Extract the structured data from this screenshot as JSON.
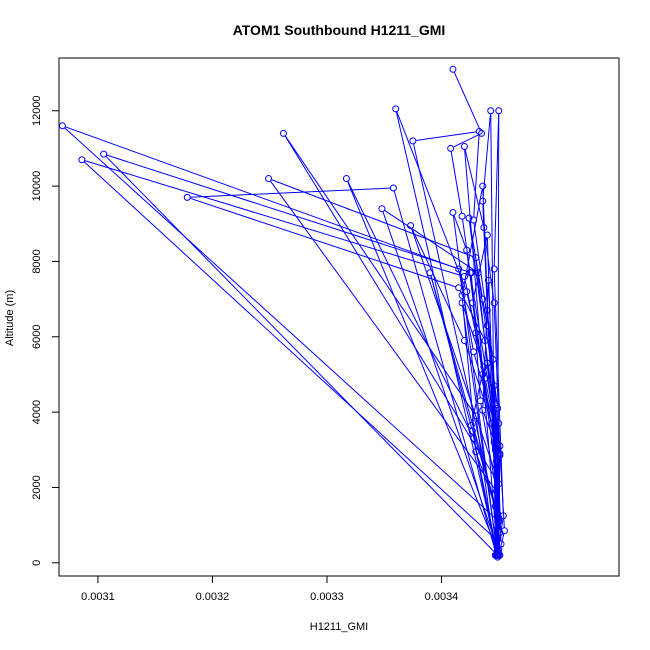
{
  "chart_data": {
    "type": "line",
    "title": "ATOM1 Southbound H1211_GMI",
    "xlabel": "H1211_GMI",
    "ylabel": "Altitude (m)",
    "xlim": [
      0.003066,
      0.003555
    ],
    "ylim": [
      -350,
      13400
    ],
    "x_ticks": [
      0.0031,
      0.0032,
      0.0033,
      0.0034
    ],
    "x_tick_labels": [
      "0.0031",
      "0.0032",
      "0.0033",
      "0.0034"
    ],
    "y_ticks": [
      0,
      2000,
      4000,
      6000,
      8000,
      10000,
      12000
    ],
    "y_tick_labels": [
      "0",
      "2000",
      "4000",
      "6000",
      "8000",
      "10000",
      "12000"
    ],
    "grid": false,
    "series": [
      {
        "color": "#0000ff",
        "marker": "open-circle",
        "points": [
          [
            0.00341,
            13100
          ],
          [
            0.003435,
            11400
          ],
          [
            0.003408,
            11000
          ],
          [
            0.003418,
            9200
          ],
          [
            0.003425,
            7700
          ],
          [
            0.003448,
            3400
          ],
          [
            0.00345,
            350
          ],
          [
            0.003449,
            200
          ],
          [
            0.00336,
            12050
          ],
          [
            0.003422,
            7200
          ],
          [
            0.00343,
            6100
          ],
          [
            0.003446,
            3200
          ],
          [
            0.00345,
            1100
          ],
          [
            0.003069,
            11600
          ],
          [
            0.003415,
            7800
          ],
          [
            0.003428,
            5600
          ],
          [
            0.003447,
            3600
          ],
          [
            0.003451,
            800
          ],
          [
            0.003375,
            11200
          ],
          [
            0.003433,
            11450
          ],
          [
            0.003428,
            9100
          ],
          [
            0.003445,
            5400
          ],
          [
            0.00345,
            2100
          ],
          [
            0.003262,
            11400
          ],
          [
            0.00343,
            3900
          ],
          [
            0.003447,
            200
          ],
          [
            0.003443,
            12000
          ],
          [
            0.003436,
            9600
          ],
          [
            0.00344,
            6700
          ],
          [
            0.003448,
            4200
          ],
          [
            0.003452,
            500
          ],
          [
            0.003086,
            10700
          ],
          [
            0.00342,
            7600
          ],
          [
            0.003438,
            4900
          ],
          [
            0.003451,
            2900
          ],
          [
            0.003449,
            200
          ],
          [
            0.003105,
            10850
          ],
          [
            0.003426,
            7700
          ],
          [
            0.003434,
            4300
          ],
          [
            0.003448,
            1900
          ],
          [
            0.003249,
            10200
          ],
          [
            0.00343,
            8100
          ],
          [
            0.00344,
            5300
          ],
          [
            0.003451,
            3100
          ],
          [
            0.00345,
            250
          ],
          [
            0.003317,
            10200
          ],
          [
            0.003428,
            3300
          ],
          [
            0.003448,
            200
          ],
          [
            0.003358,
            9950
          ],
          [
            0.003178,
            9700
          ],
          [
            0.003415,
            7300
          ],
          [
            0.003438,
            5900
          ],
          [
            0.003448,
            2700
          ],
          [
            0.003451,
            200
          ],
          [
            0.003348,
            9400
          ],
          [
            0.003432,
            7700
          ],
          [
            0.003446,
            4700
          ],
          [
            0.003449,
            150
          ],
          [
            0.00341,
            9300
          ],
          [
            0.003422,
            8300
          ],
          [
            0.003436,
            5000
          ],
          [
            0.003448,
            2300
          ],
          [
            0.003373,
            8950
          ],
          [
            0.00342,
            5900
          ],
          [
            0.003444,
            3700
          ],
          [
            0.00345,
            1200
          ],
          [
            0.00339,
            7700
          ],
          [
            0.003427,
            3500
          ],
          [
            0.003449,
            200
          ],
          [
            0.00342,
            11050
          ],
          [
            0.003437,
            8900
          ],
          [
            0.003446,
            6900
          ],
          [
            0.00345,
            3700
          ],
          [
            0.003449,
            300
          ],
          [
            0.003436,
            10000
          ],
          [
            0.003418,
            7100
          ],
          [
            0.00343,
            2950
          ],
          [
            0.003447,
            1500
          ],
          [
            0.003449,
            200
          ],
          [
            0.00345,
            12000
          ],
          [
            0.003446,
            7800
          ],
          [
            0.003454,
            1250
          ],
          [
            0.003449,
            200
          ],
          [
            0.00344,
            8700
          ],
          [
            0.003427,
            6900
          ],
          [
            0.003447,
            3000
          ],
          [
            0.003449,
            200
          ],
          [
            0.003418,
            6900
          ],
          [
            0.003437,
            5200
          ],
          [
            0.003426,
            3650
          ],
          [
            0.003449,
            1300
          ],
          [
            0.003441,
            7500
          ],
          [
            0.003436,
            4050
          ],
          [
            0.003451,
            2850
          ],
          [
            0.003424,
            9150
          ],
          [
            0.003436,
            7000
          ],
          [
            0.00344,
            6300
          ],
          [
            0.003449,
            4100
          ],
          [
            0.003455,
            850
          ],
          [
            0.00345,
            200
          ]
        ]
      }
    ]
  }
}
